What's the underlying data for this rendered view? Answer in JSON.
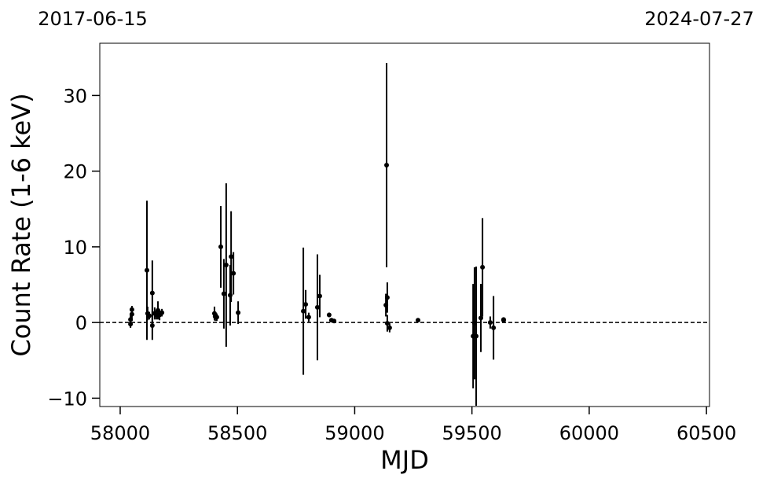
{
  "chart_data": {
    "type": "errorbar",
    "corner_labels": [
      "2017-06-15",
      "2024-07-27"
    ],
    "xlabel": "MJD",
    "ylabel": "Count Rate (1-6 keV)",
    "x": [
      58044,
      58044,
      58050,
      58050,
      58114,
      58117,
      58124,
      58137,
      58137,
      58147,
      58154,
      58161,
      58168,
      58178,
      58402,
      58405,
      58412,
      58429,
      58442,
      58452,
      58469,
      58473,
      58483,
      58503,
      58781,
      58791,
      58804,
      58841,
      58851,
      58891,
      58901,
      58912,
      59133,
      59136,
      59139,
      59139,
      59149,
      59270,
      59505,
      59511,
      59518,
      59538,
      59545,
      59578,
      59592,
      59635,
      59635
    ],
    "values": [
      -0.2,
      0.4,
      1.7,
      1.1,
      6.9,
      1.2,
      0.9,
      3.9,
      -0.4,
      1.2,
      1.0,
      1.6,
      1.0,
      1.3,
      1.2,
      0.8,
      0.7,
      10.0,
      3.8,
      7.6,
      3.6,
      8.7,
      6.5,
      1.3,
      1.5,
      2.4,
      0.7,
      2.0,
      3.5,
      1.0,
      0.3,
      0.2,
      2.3,
      20.8,
      3.3,
      -0.1,
      -0.7,
      0.3,
      -1.8,
      -0.1,
      -1.8,
      0.6,
      7.3,
      0.0,
      -0.7,
      0.4,
      0.3
    ],
    "errors": [
      0.5,
      0.6,
      0.5,
      0.9,
      9.2,
      0.9,
      0.5,
      4.3,
      1.9,
      0.8,
      0.6,
      1.2,
      0.7,
      0.5,
      0.9,
      0.6,
      0.5,
      5.4,
      4.6,
      10.8,
      4.0,
      6.0,
      2.8,
      1.5,
      8.4,
      1.9,
      0.6,
      7.0,
      2.8,
      0.3,
      0.2,
      0.2,
      1.5,
      13.5,
      2.0,
      1.1,
      0.6,
      0.2,
      6.9,
      7.4,
      9.2,
      4.5,
      6.5,
      0.8,
      4.2,
      0.2,
      0.2
    ],
    "color": "#000000",
    "hline": 0,
    "xlim": [
      57913,
      60513
    ],
    "ylim": [
      -11.1,
      36.9
    ],
    "xticks": [
      58000,
      58500,
      59000,
      59500,
      60000,
      60500
    ],
    "yticks": [
      {
        "value": -10,
        "label": "−10"
      },
      0,
      10,
      20,
      30
    ]
  }
}
